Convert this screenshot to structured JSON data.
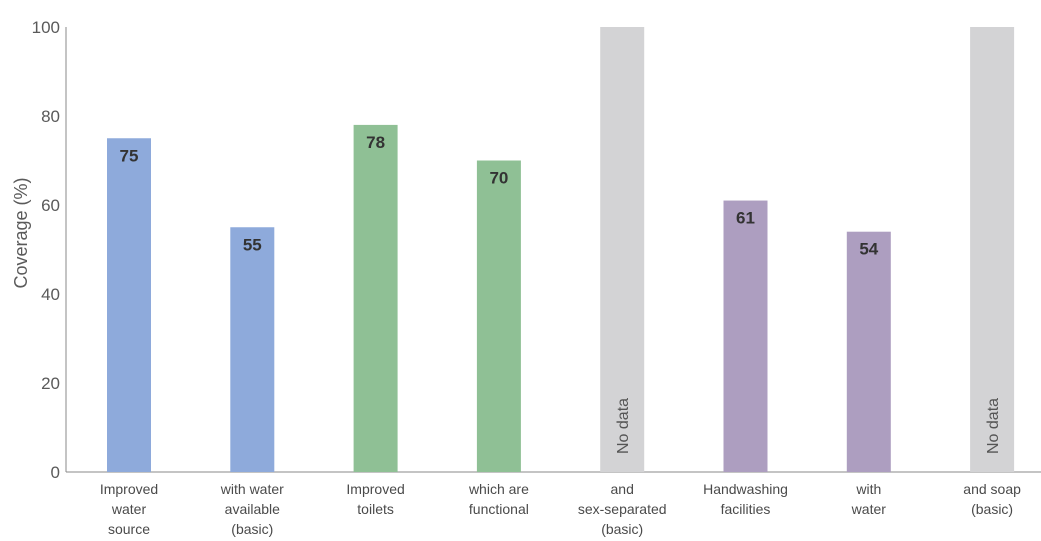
{
  "chart_data": {
    "type": "bar",
    "ylabel": "Coverage (%)",
    "ylim": [
      0,
      100
    ],
    "yticks": [
      0,
      20,
      40,
      60,
      80,
      100
    ],
    "grid": false,
    "nodata_text": "No data",
    "bars": [
      {
        "label_lines": [
          "Improved",
          "water",
          "source"
        ],
        "value": 75,
        "color": "#8eaadb",
        "nodata": false
      },
      {
        "label_lines": [
          "with water",
          "available",
          "(basic)"
        ],
        "value": 55,
        "color": "#8eaadb",
        "nodata": false
      },
      {
        "label_lines": [
          "Improved",
          "toilets"
        ],
        "value": 78,
        "color": "#8fc095",
        "nodata": false
      },
      {
        "label_lines": [
          "which are",
          "functional"
        ],
        "value": 70,
        "color": "#8fc095",
        "nodata": false
      },
      {
        "label_lines": [
          "and",
          "sex-separated",
          "(basic)"
        ],
        "value": 100,
        "color": "#d3d3d5",
        "nodata": true
      },
      {
        "label_lines": [
          "Handwashing",
          "facilities"
        ],
        "value": 61,
        "color": "#ad9ec0",
        "nodata": false
      },
      {
        "label_lines": [
          "with",
          "water"
        ],
        "value": 54,
        "color": "#ad9ec0",
        "nodata": false
      },
      {
        "label_lines": [
          "and soap",
          "(basic)"
        ],
        "value": 100,
        "color": "#d3d3d5",
        "nodata": true
      }
    ]
  }
}
